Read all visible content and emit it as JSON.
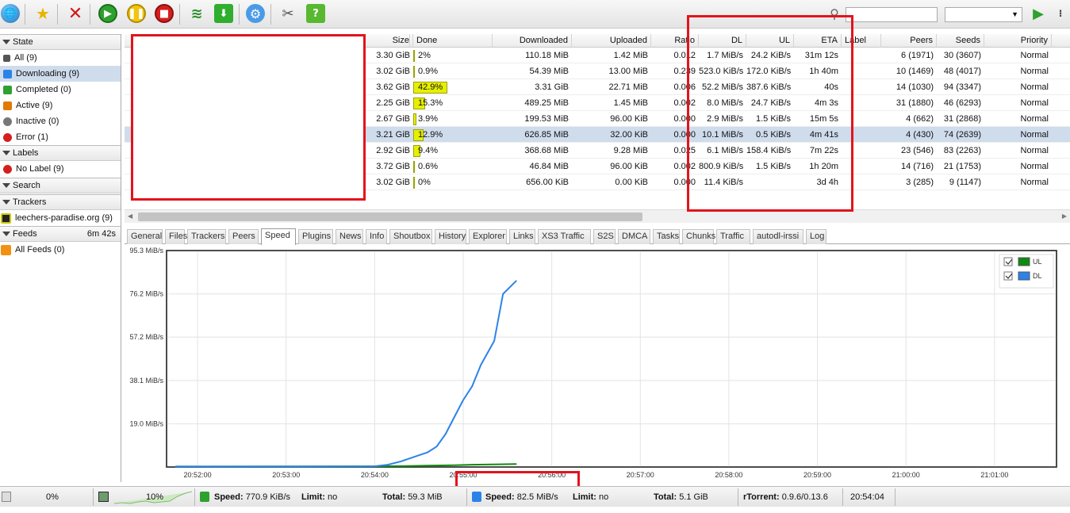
{
  "colors": {
    "accent_red": "#e2141c",
    "progress_fill": "#e6ef00",
    "dl_line": "#2b83ea",
    "ul_line": "#0f8a0f",
    "selected_row": "#cfdcec"
  },
  "toolbar": {
    "icons": [
      "globe-icon",
      "star-icon",
      "delete-icon",
      "play-icon",
      "pause-icon",
      "stop-icon",
      "rss-icon",
      "download-icon",
      "settings-icon",
      "tools-icon",
      "help-icon",
      "search-icon",
      "go-icon"
    ],
    "search_placeholder": ""
  },
  "sidebar": {
    "state_header": "State",
    "state_items": [
      {
        "label": "All (9)",
        "icon": "all-icon"
      },
      {
        "label": "Downloading (9)",
        "icon": "downloading-icon"
      },
      {
        "label": "Completed (0)",
        "icon": "completed-icon"
      },
      {
        "label": "Active (9)",
        "icon": "active-icon"
      },
      {
        "label": "Inactive (0)",
        "icon": "inactive-icon"
      },
      {
        "label": "Error (1)",
        "icon": "error-icon"
      }
    ],
    "labels_header": "Labels",
    "labels_items": [
      {
        "label": "No Label (9)",
        "icon": "no-label-icon"
      }
    ],
    "search_header": "Search",
    "trackers_header": "Trackers",
    "trackers_items": [
      {
        "label": "leechers-paradise.org (9)",
        "icon": "tracker-icon"
      }
    ],
    "feeds_header": "Feeds",
    "feeds_time": "6m 42s",
    "feeds_items": [
      {
        "label": "All Feeds (0)",
        "icon": "rss-icon"
      }
    ]
  },
  "table": {
    "columns": [
      "Size",
      "Done",
      "Downloaded",
      "Uploaded",
      "Ratio",
      "DL",
      "UL",
      "ETA",
      "Label",
      "Peers",
      "Seeds",
      "Priority"
    ],
    "rows": [
      {
        "size": "3.30 GiB",
        "done": "2%",
        "progress": 0.02,
        "downloaded": "110.18 MiB",
        "uploaded": "1.42 MiB",
        "ratio": "0.012",
        "dl": "1.7 MiB/s",
        "ul": "24.2 KiB/s",
        "eta": "31m 12s",
        "peers": "6 (1971)",
        "seeds": "30 (3607)",
        "priority": "Normal"
      },
      {
        "size": "3.02 GiB",
        "done": "0.9%",
        "progress": 0.009,
        "downloaded": "54.39 MiB",
        "uploaded": "13.00 MiB",
        "ratio": "0.239",
        "dl": "523.0 KiB/s",
        "ul": "172.0 KiB/s",
        "eta": "1h 40m",
        "peers": "10 (1469)",
        "seeds": "48 (4017)",
        "priority": "Normal"
      },
      {
        "size": "3.62 GiB",
        "done": "42.9%",
        "progress": 0.429,
        "downloaded": "3.31 GiB",
        "uploaded": "22.71 MiB",
        "ratio": "0.006",
        "dl": "52.2 MiB/s",
        "ul": "387.6 KiB/s",
        "eta": "40s",
        "peers": "14 (1030)",
        "seeds": "94 (3347)",
        "priority": "Normal"
      },
      {
        "size": "2.25 GiB",
        "done": "15.3%",
        "progress": 0.153,
        "downloaded": "489.25 MiB",
        "uploaded": "1.45 MiB",
        "ratio": "0.002",
        "dl": "8.0 MiB/s",
        "ul": "24.7 KiB/s",
        "eta": "4m 3s",
        "peers": "31 (1880)",
        "seeds": "46 (6293)",
        "priority": "Normal"
      },
      {
        "size": "2.67 GiB",
        "done": "3.9%",
        "progress": 0.039,
        "downloaded": "199.53 MiB",
        "uploaded": "96.00 KiB",
        "ratio": "0.000",
        "dl": "2.9 MiB/s",
        "ul": "1.5 KiB/s",
        "eta": "15m 5s",
        "peers": "4 (662)",
        "seeds": "31 (2868)",
        "priority": "Normal"
      },
      {
        "size": "3.21 GiB",
        "done": "12.9%",
        "progress": 0.129,
        "downloaded": "626.85 MiB",
        "uploaded": "32.00 KiB",
        "ratio": "0.000",
        "dl": "10.1 MiB/s",
        "ul": "0.5 KiB/s",
        "eta": "4m 41s",
        "peers": "4 (430)",
        "seeds": "74 (2639)",
        "priority": "Normal"
      },
      {
        "size": "2.92 GiB",
        "done": "9.4%",
        "progress": 0.094,
        "downloaded": "368.68 MiB",
        "uploaded": "9.28 MiB",
        "ratio": "0.025",
        "dl": "6.1 MiB/s",
        "ul": "158.4 KiB/s",
        "eta": "7m 22s",
        "peers": "23 (546)",
        "seeds": "83 (2263)",
        "priority": "Normal"
      },
      {
        "size": "3.72 GiB",
        "done": "0.6%",
        "progress": 0.006,
        "downloaded": "46.84 MiB",
        "uploaded": "96.00 KiB",
        "ratio": "0.002",
        "dl": "800.9 KiB/s",
        "ul": "1.5 KiB/s",
        "eta": "1h 20m",
        "peers": "14 (716)",
        "seeds": "21 (1753)",
        "priority": "Normal"
      },
      {
        "size": "3.02 GiB",
        "done": "0%",
        "progress": 0.0,
        "downloaded": "656.00 KiB",
        "uploaded": "0.00 KiB",
        "ratio": "0.000",
        "dl": "11.4 KiB/s",
        "ul": "",
        "eta": "3d 4h",
        "peers": "3 (285)",
        "seeds": "9 (1147)",
        "priority": "Normal"
      }
    ],
    "selected_index": 5
  },
  "tabs": [
    "General",
    "Files",
    "Trackers",
    "Peers",
    "Speed",
    "Plugins",
    "News",
    "Info",
    "Shoutbox",
    "History",
    "Explorer",
    "Links",
    "XS3 Traffic",
    "S2S",
    "DMCA",
    "Tasks",
    "Chunks",
    "Traffic",
    "autodl-irssi",
    "Log"
  ],
  "active_tab": "Speed",
  "chart_data": {
    "type": "line",
    "y_ticks": [
      "95.3 MiB/s",
      "76.2 MiB/s",
      "57.2 MiB/s",
      "38.1 MiB/s",
      "19.0 MiB/s"
    ],
    "x_ticks": [
      "20:52:00",
      "20:53:00",
      "20:54:00",
      "20:55:00",
      "20:56:00",
      "20:57:00",
      "20:58:00",
      "20:59:00",
      "21:00:00",
      "21:01:00"
    ],
    "ylim": [
      0,
      95.3
    ],
    "xlim_minutes": [
      51.65,
      61.7
    ],
    "series": [
      {
        "name": "UL",
        "color": "#0f8a0f",
        "checked": true,
        "x": [
          51.75,
          54.0,
          54.3,
          54.6,
          54.9,
          55.1,
          55.4,
          55.6
        ],
        "y": [
          0.2,
          0.3,
          0.4,
          0.6,
          0.8,
          1.0,
          1.2,
          1.3
        ]
      },
      {
        "name": "DL",
        "color": "#2b83ea",
        "checked": true,
        "x": [
          51.75,
          53.0,
          54.0,
          54.15,
          54.3,
          54.45,
          54.6,
          54.7,
          54.8,
          54.9,
          55.0,
          55.1,
          55.2,
          55.35,
          55.45,
          55.6
        ],
        "y": [
          0.2,
          0.2,
          0.3,
          1.0,
          2.5,
          4.5,
          6.5,
          9.0,
          14.5,
          22.0,
          29.5,
          35.5,
          45.0,
          55.5,
          76.2,
          82.0
        ]
      }
    ]
  },
  "status": {
    "disk_pct": "0%",
    "cpu_pct": "10%",
    "ul_speed_label": "Speed:",
    "ul_speed": "770.9 KiB/s",
    "ul_limit_label": "Limit:",
    "ul_limit": "no",
    "ul_total_label": "Total:",
    "ul_total": "59.3 MiB",
    "dl_speed_label": "Speed:",
    "dl_speed": "82.5 MiB/s",
    "dl_limit_label": "Limit:",
    "dl_limit": "no",
    "dl_total_label": "Total:",
    "dl_total": "5.1 GiB",
    "version_label": "rTorrent:",
    "version": "0.9.6/0.13.6",
    "clock": "20:54:04"
  }
}
